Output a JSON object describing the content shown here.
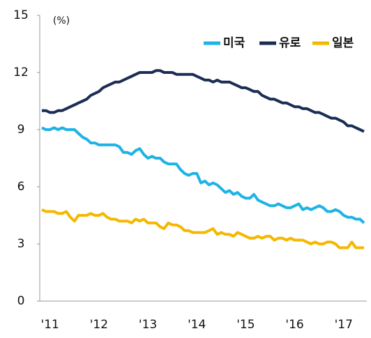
{
  "chart_data": {
    "type": "line",
    "y_label": "(%)",
    "categories": [
      null,
      null,
      "'11",
      null,
      null,
      null,
      null,
      null,
      null,
      null,
      null,
      null,
      null,
      null,
      "'12",
      null,
      null,
      null,
      null,
      null,
      null,
      null,
      null,
      null,
      null,
      null,
      "'13",
      null,
      null,
      null,
      null,
      null,
      null,
      null,
      null,
      null,
      null,
      null,
      "'14",
      null,
      null,
      null,
      null,
      null,
      null,
      null,
      null,
      null,
      null,
      null,
      "'15",
      null,
      null,
      null,
      null,
      null,
      null,
      null,
      null,
      null,
      null,
      null,
      "'16",
      null,
      null,
      null,
      null,
      null,
      null,
      null,
      null,
      null,
      null,
      null,
      "'17",
      null,
      null,
      null,
      null,
      null
    ],
    "series": [
      {
        "name": "미국",
        "color": "#1fb3e5",
        "values": [
          9.1,
          9.0,
          9.0,
          9.1,
          9.0,
          9.1,
          9.0,
          9.0,
          9.0,
          8.8,
          8.6,
          8.5,
          8.3,
          8.3,
          8.2,
          8.2,
          8.2,
          8.2,
          8.2,
          8.1,
          7.8,
          7.8,
          7.7,
          7.9,
          8.0,
          7.7,
          7.5,
          7.6,
          7.5,
          7.5,
          7.3,
          7.2,
          7.2,
          7.2,
          6.9,
          6.7,
          6.6,
          6.7,
          6.7,
          6.2,
          6.3,
          6.1,
          6.2,
          6.1,
          5.9,
          5.7,
          5.8,
          5.6,
          5.7,
          5.5,
          5.4,
          5.4,
          5.6,
          5.3,
          5.2,
          5.1,
          5.0,
          5.0,
          5.1,
          5.0,
          4.9,
          4.9,
          5.0,
          5.1,
          4.8,
          4.9,
          4.8,
          4.9,
          5.0,
          4.9,
          4.7,
          4.7,
          4.8,
          4.7,
          4.5,
          4.4,
          4.4,
          4.3,
          4.3,
          4.1
        ]
      },
      {
        "name": "유로",
        "color": "#1c2d55",
        "values": [
          10.0,
          10.0,
          9.9,
          9.9,
          10.0,
          10.0,
          10.1,
          10.2,
          10.3,
          10.4,
          10.5,
          10.6,
          10.8,
          10.9,
          11.0,
          11.2,
          11.3,
          11.4,
          11.5,
          11.5,
          11.6,
          11.7,
          11.8,
          11.9,
          12.0,
          12.0,
          12.0,
          12.0,
          12.1,
          12.1,
          12.0,
          12.0,
          12.0,
          11.9,
          11.9,
          11.9,
          11.9,
          11.9,
          11.8,
          11.7,
          11.6,
          11.6,
          11.5,
          11.6,
          11.5,
          11.5,
          11.5,
          11.4,
          11.3,
          11.2,
          11.2,
          11.1,
          11.0,
          11.0,
          10.8,
          10.7,
          10.6,
          10.6,
          10.5,
          10.4,
          10.4,
          10.3,
          10.2,
          10.2,
          10.1,
          10.1,
          10.0,
          9.9,
          9.9,
          9.8,
          9.7,
          9.6,
          9.6,
          9.5,
          9.4,
          9.2,
          9.2,
          9.1,
          9.0,
          8.9
        ]
      },
      {
        "name": "일본",
        "color": "#f5b800",
        "values": [
          4.8,
          4.7,
          4.7,
          4.7,
          4.6,
          4.6,
          4.7,
          4.4,
          4.2,
          4.5,
          4.5,
          4.5,
          4.6,
          4.5,
          4.5,
          4.6,
          4.4,
          4.3,
          4.3,
          4.2,
          4.2,
          4.2,
          4.1,
          4.3,
          4.2,
          4.3,
          4.1,
          4.1,
          4.1,
          3.9,
          3.8,
          4.1,
          4.0,
          4.0,
          3.9,
          3.7,
          3.7,
          3.6,
          3.6,
          3.6,
          3.6,
          3.7,
          3.8,
          3.5,
          3.6,
          3.5,
          3.5,
          3.4,
          3.6,
          3.5,
          3.4,
          3.3,
          3.3,
          3.4,
          3.3,
          3.4,
          3.4,
          3.2,
          3.3,
          3.3,
          3.2,
          3.3,
          3.2,
          3.2,
          3.2,
          3.1,
          3.0,
          3.1,
          3.0,
          3.0,
          3.1,
          3.1,
          3.0,
          2.8,
          2.8,
          2.8,
          3.1,
          2.8,
          2.8,
          2.8
        ]
      }
    ],
    "ylim": [
      0,
      15
    ],
    "yticks": [
      0,
      3,
      6,
      9,
      12,
      15
    ],
    "grid": false,
    "legend": "top-right"
  }
}
